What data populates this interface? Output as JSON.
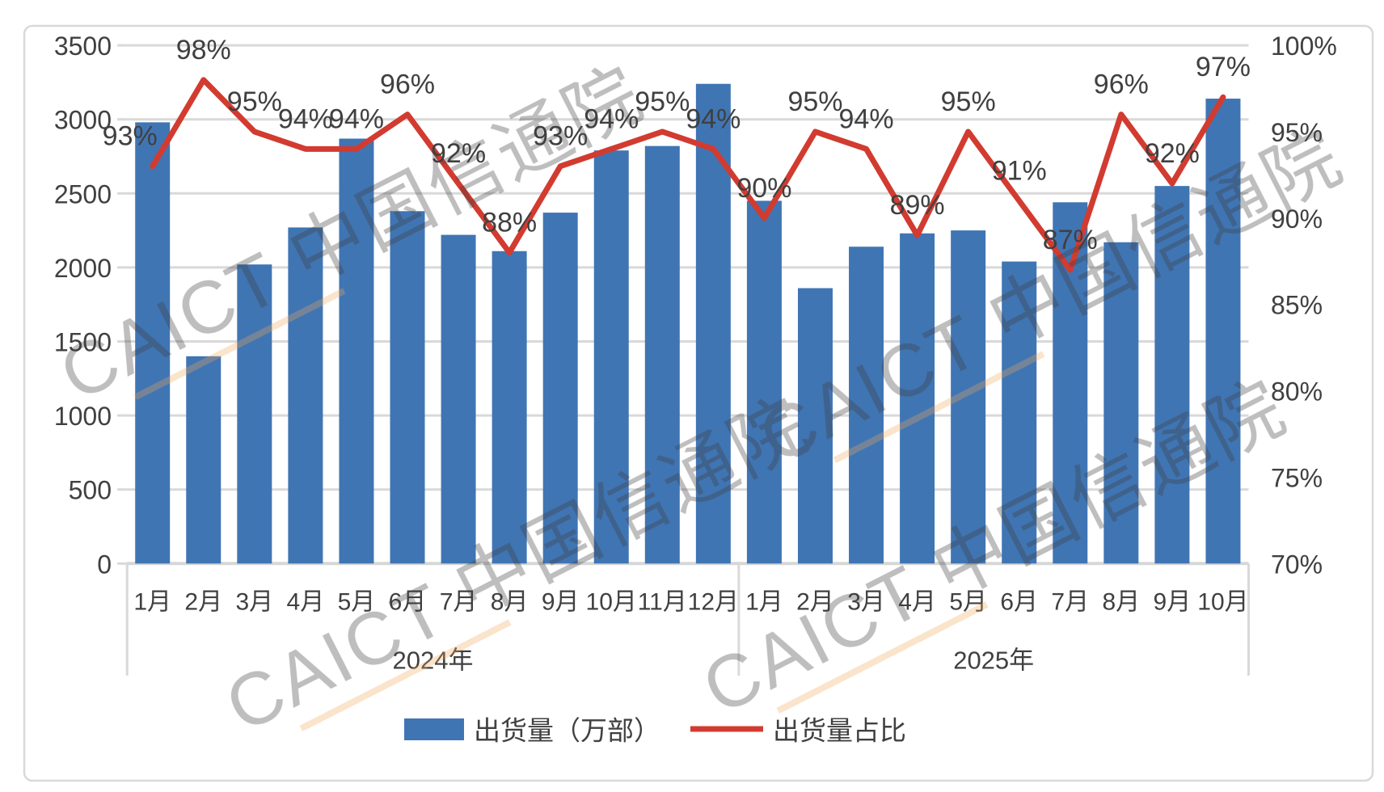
{
  "chart_data": {
    "type": "bar+line",
    "title": "",
    "categories": [
      "1月",
      "2月",
      "3月",
      "4月",
      "5月",
      "6月",
      "7月",
      "8月",
      "9月",
      "10月",
      "11月",
      "12月",
      "1月",
      "2月",
      "3月",
      "4月",
      "5月",
      "6月",
      "7月",
      "8月",
      "9月",
      "10月"
    ],
    "category_groups": [
      {
        "label": "2024年",
        "count": 12
      },
      {
        "label": "2025年",
        "count": 10
      }
    ],
    "series": [
      {
        "name": "出货量（万部）",
        "type": "bar",
        "axis": "left",
        "color": "#4075B4",
        "values": [
          2980,
          1400,
          2020,
          2270,
          2870,
          2380,
          2220,
          2110,
          2370,
          2790,
          2820,
          3240,
          2450,
          1860,
          2140,
          2230,
          2250,
          2040,
          2440,
          2170,
          2550,
          3140
        ]
      },
      {
        "name": "出货量占比",
        "type": "line",
        "axis": "right",
        "color": "#D23B30",
        "values": [
          93,
          98,
          95,
          94,
          94,
          96,
          92,
          88,
          93,
          94,
          95,
          94,
          90,
          95,
          94,
          89,
          95,
          91,
          87,
          96,
          92,
          97
        ],
        "label_suffix": "%"
      }
    ],
    "left_axis": {
      "min": 0,
      "max": 3500,
      "step": 500,
      "ticks": [
        "3500",
        "3000",
        "2500",
        "2000",
        "1500",
        "1000",
        "500",
        "0"
      ]
    },
    "right_axis": {
      "min": 70,
      "max": 100,
      "step": 5,
      "ticks": [
        "100%",
        "95%",
        "90%",
        "85%",
        "80%",
        "75%",
        "70%"
      ]
    },
    "grid": true,
    "legend_position": "bottom"
  },
  "legend": {
    "bar_label": "出货量（万部）",
    "line_label": "出货量占比"
  },
  "watermark": {
    "text": "CAICT 中国信通院",
    "color": "#8D95C0",
    "accent_color": "#F0A858"
  },
  "colors": {
    "bar": "#4075B4",
    "line": "#D23B30",
    "gridline": "#D9D9D9",
    "axis_line": "#D6D8D8",
    "text": "#404040",
    "frame": "#D9D9D9"
  }
}
